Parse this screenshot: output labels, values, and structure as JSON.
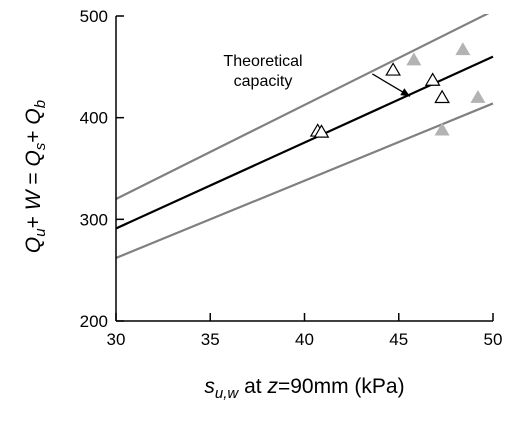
{
  "chart_data": {
    "type": "line",
    "title": "",
    "xlabel": {
      "parts": [
        {
          "text": "s",
          "italic": true
        },
        {
          "text": "u,w",
          "italic": true,
          "sub": true
        },
        {
          "text": " at ",
          "italic": false
        },
        {
          "text": "z",
          "italic": true
        },
        {
          "text": "=90mm (kPa)",
          "italic": false
        }
      ]
    },
    "ylabel": {
      "parts": [
        {
          "text": "Q",
          "italic": true
        },
        {
          "text": "u",
          "italic": true,
          "sub": true
        },
        {
          "text": "+ ",
          "italic": false
        },
        {
          "text": "W",
          "italic": true
        },
        {
          "text": " = ",
          "italic": false
        },
        {
          "text": "Q",
          "italic": true
        },
        {
          "text": "s",
          "italic": true,
          "sub": true
        },
        {
          "text": "+ ",
          "italic": false
        },
        {
          "text": "Q",
          "italic": true
        },
        {
          "text": "b",
          "italic": true,
          "sub": true
        }
      ]
    },
    "xlim": [
      30,
      50
    ],
    "ylim": [
      200,
      500
    ],
    "xticks": [
      "30",
      "35",
      "40",
      "45",
      "50"
    ],
    "yticks": [
      "200",
      "300",
      "400",
      "500"
    ],
    "grid": false,
    "annotation": {
      "lines": [
        "Theoretical",
        "capacity"
      ],
      "arrow_from": [
        43.6,
        443
      ],
      "arrow_to": [
        45.6,
        421
      ]
    },
    "lines": [
      {
        "x": [
          30,
          50
        ],
        "y": [
          320,
          505
        ],
        "color": "#808080",
        "width": 2.2
      },
      {
        "x": [
          30,
          50
        ],
        "y": [
          291,
          460
        ],
        "color": "#000000",
        "width": 2.2
      },
      {
        "x": [
          30,
          50
        ],
        "y": [
          262,
          414
        ],
        "color": "#808080",
        "width": 2.2
      }
    ],
    "series": [
      {
        "marker": "triangle-open",
        "color": "#000000",
        "points": [
          [
            40.7,
            387
          ],
          [
            40.9,
            386
          ],
          [
            44.7,
            447
          ],
          [
            46.8,
            437
          ],
          [
            47.3,
            420
          ]
        ]
      },
      {
        "marker": "triangle-filled",
        "color": "#b3b3b3",
        "points": [
          [
            45.8,
            457
          ],
          [
            47.3,
            388
          ],
          [
            48.4,
            467
          ],
          [
            49.2,
            420
          ]
        ]
      }
    ]
  }
}
